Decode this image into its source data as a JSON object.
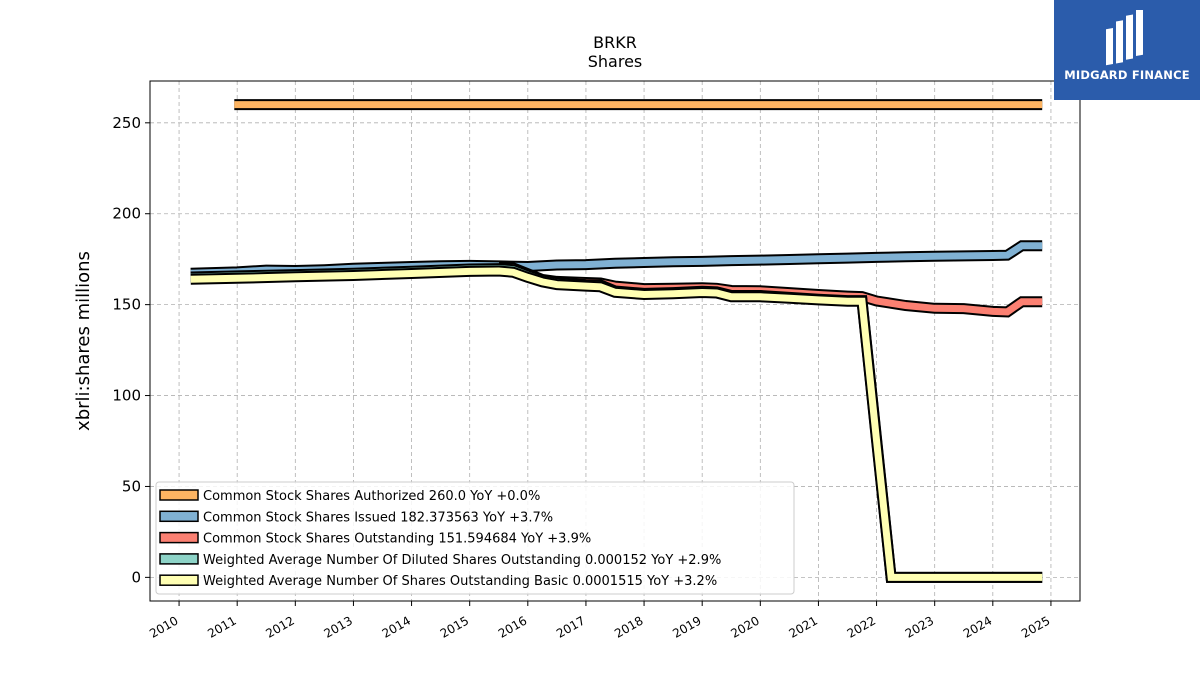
{
  "chart_data": {
    "type": "line",
    "title": "BRKR",
    "subtitle": "Shares",
    "ylabel": "xbrli:shares millions",
    "xlabel": "",
    "ylim": [
      -13,
      273
    ],
    "xlim": [
      2009.5,
      2025.5
    ],
    "yticks": [
      0,
      50,
      100,
      150,
      200,
      250
    ],
    "xticks": [
      2010,
      2011,
      2012,
      2013,
      2014,
      2015,
      2016,
      2017,
      2018,
      2019,
      2020,
      2021,
      2022,
      2023,
      2024,
      2025
    ],
    "grid": true,
    "legend_position": "lower-left",
    "series": [
      {
        "name": "Common Stock Shares Authorized",
        "legend": "Common Stock Shares Authorized  260.0 YoY +0.0%",
        "color": "#fdb462",
        "points": [
          [
            2010.95,
            260
          ],
          [
            2024.85,
            260
          ]
        ]
      },
      {
        "name": "Common Stock Shares Issued",
        "legend": "Common Stock Shares Issued  182.373563 YoY +3.7%",
        "color": "#80b1d3",
        "points": [
          [
            2010.2,
            167.3
          ],
          [
            2011.0,
            168.0
          ],
          [
            2011.5,
            169.0
          ],
          [
            2012.0,
            168.8
          ],
          [
            2012.5,
            169.2
          ],
          [
            2013.0,
            170.0
          ],
          [
            2013.5,
            170.5
          ],
          [
            2014.0,
            171.0
          ],
          [
            2014.5,
            171.4
          ],
          [
            2015.0,
            171.6
          ],
          [
            2015.5,
            171.3
          ],
          [
            2016.0,
            171.0
          ],
          [
            2016.5,
            171.8
          ],
          [
            2017.0,
            172.0
          ],
          [
            2017.5,
            172.8
          ],
          [
            2018.0,
            173.2
          ],
          [
            2018.5,
            173.6
          ],
          [
            2019.0,
            173.8
          ],
          [
            2019.5,
            174.2
          ],
          [
            2020.0,
            174.5
          ],
          [
            2020.5,
            174.8
          ],
          [
            2021.0,
            175.2
          ],
          [
            2021.5,
            175.6
          ],
          [
            2022.0,
            176.0
          ],
          [
            2022.5,
            176.3
          ],
          [
            2023.0,
            176.6
          ],
          [
            2023.5,
            176.8
          ],
          [
            2024.0,
            177.0
          ],
          [
            2024.25,
            177.2
          ],
          [
            2024.5,
            182.4
          ],
          [
            2024.85,
            182.4
          ]
        ]
      },
      {
        "name": "Common Stock Shares Outstanding",
        "legend": "Common Stock Shares Outstanding  151.594684 YoY +3.9%",
        "color": "#fb8072",
        "points": [
          [
            2015.5,
            170.6
          ],
          [
            2015.75,
            170.2
          ],
          [
            2016.0,
            167.0
          ],
          [
            2016.25,
            163.8
          ],
          [
            2016.5,
            162.8
          ],
          [
            2017.0,
            162.2
          ],
          [
            2017.25,
            161.9
          ],
          [
            2017.5,
            160.2
          ],
          [
            2018.0,
            158.8
          ],
          [
            2018.5,
            159.0
          ],
          [
            2019.0,
            159.3
          ],
          [
            2019.25,
            159.0
          ],
          [
            2019.5,
            157.8
          ],
          [
            2020.0,
            157.6
          ],
          [
            2020.5,
            156.6
          ],
          [
            2021.0,
            155.6
          ],
          [
            2021.5,
            154.7
          ],
          [
            2021.75,
            154.4
          ],
          [
            2022.0,
            152.0
          ],
          [
            2022.5,
            149.5
          ],
          [
            2023.0,
            148.0
          ],
          [
            2023.5,
            147.8
          ],
          [
            2024.0,
            146.3
          ],
          [
            2024.25,
            146.0
          ],
          [
            2024.5,
            151.6
          ],
          [
            2024.85,
            151.6
          ]
        ]
      },
      {
        "name": "Weighted Average Number Of Diluted Shares Outstanding",
        "legend": "Weighted Average Number Of Diluted Shares Outstanding  0.000152 YoY +2.9%",
        "color": "#8dd3c7",
        "points": [
          [
            2010.2,
            165.2
          ],
          [
            2011.0,
            165.8
          ],
          [
            2012.0,
            166.5
          ],
          [
            2013.0,
            167.3
          ],
          [
            2014.0,
            168.4
          ],
          [
            2015.0,
            169.6
          ],
          [
            2015.5,
            169.8
          ],
          [
            2015.75,
            169.2
          ],
          [
            2016.0,
            166.2
          ],
          [
            2016.25,
            163.5
          ],
          [
            2016.5,
            162.0
          ],
          [
            2017.0,
            161.0
          ],
          [
            2017.25,
            160.8
          ],
          [
            2017.5,
            157.5
          ],
          [
            2018.0,
            156.2
          ],
          [
            2018.5,
            156.6
          ],
          [
            2019.0,
            157.4
          ],
          [
            2019.25,
            157.0
          ],
          [
            2019.5,
            155.0
          ],
          [
            2020.0,
            155.0
          ],
          [
            2020.5,
            154.0
          ],
          [
            2021.0,
            153.0
          ],
          [
            2021.5,
            152.2
          ],
          [
            2021.75,
            152.2
          ],
          [
            2022.0,
            76.0
          ],
          [
            2022.25,
            0.000152
          ],
          [
            2024.85,
            0.000152
          ]
        ]
      },
      {
        "name": "Weighted Average Number Of Shares Outstanding Basic",
        "legend": "Weighted Average Number Of Shares Outstanding Basic  0.0001515 YoY +3.2%",
        "color": "#ffffb3",
        "points": [
          [
            2010.2,
            164.0
          ],
          [
            2011.0,
            164.5
          ],
          [
            2012.0,
            165.3
          ],
          [
            2013.0,
            166.0
          ],
          [
            2014.0,
            167.1
          ],
          [
            2015.0,
            168.3
          ],
          [
            2015.5,
            168.5
          ],
          [
            2015.75,
            167.8
          ],
          [
            2016.0,
            165.0
          ],
          [
            2016.25,
            162.5
          ],
          [
            2016.5,
            161.0
          ],
          [
            2017.0,
            160.2
          ],
          [
            2017.25,
            159.8
          ],
          [
            2017.5,
            156.8
          ],
          [
            2018.0,
            155.6
          ],
          [
            2018.5,
            156.0
          ],
          [
            2019.0,
            156.7
          ],
          [
            2019.25,
            156.4
          ],
          [
            2019.5,
            154.3
          ],
          [
            2020.0,
            154.3
          ],
          [
            2020.5,
            153.5
          ],
          [
            2021.0,
            152.6
          ],
          [
            2021.5,
            151.9
          ],
          [
            2021.75,
            151.9
          ],
          [
            2022.0,
            75.0
          ],
          [
            2022.25,
            0.0001515
          ],
          [
            2024.85,
            0.0001515
          ]
        ]
      }
    ]
  },
  "branding": {
    "name": "MIDGARD FINANCE",
    "logo_color": "#2b5cab"
  }
}
